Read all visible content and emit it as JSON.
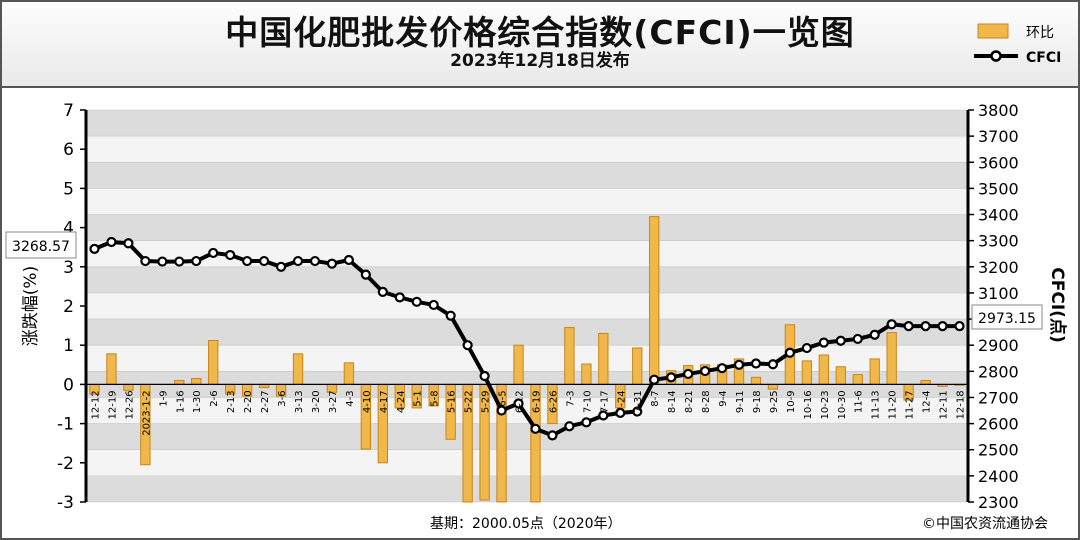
{
  "header": {
    "title": "中国化肥批发价格综合指数(CFCI)一览图",
    "subtitle": "2023年12月18日发布"
  },
  "legend": {
    "bar_label": "环比",
    "line_label": "CFCI",
    "position": "top-right"
  },
  "footer": {
    "base_note": "基期：2000.05点（2020年）",
    "copyright": "©中国农资流通协会"
  },
  "annotations": {
    "start_value": "3268.57",
    "end_value": "2973.15"
  },
  "colors": {
    "bar_fill": "#f0b84a",
    "bar_stroke": "#c8841a",
    "line": "#000000",
    "grid_band": "#dcdcdc"
  },
  "chart_data": {
    "type": "bar+line",
    "grid": true,
    "left_axis": {
      "label": "涨跌幅(%)",
      "ylim": [
        -3,
        7
      ],
      "ticks": [
        "-3",
        "-2",
        "-1",
        "0",
        "1",
        "2",
        "3",
        "4",
        "5",
        "6",
        "7"
      ]
    },
    "right_axis": {
      "label": "CFCI(点)",
      "ylim": [
        2300,
        3800
      ],
      "ticks": [
        "2300",
        "2400",
        "2500",
        "2600",
        "2700",
        "2800",
        "2900",
        "3000",
        "3100",
        "3200",
        "3300",
        "3400",
        "3500",
        "3600",
        "3700",
        "3800"
      ]
    },
    "categories": [
      "12-12",
      "12-19",
      "12-26",
      "2023-1-2",
      "1-9",
      "1-16",
      "1-30",
      "2-6",
      "2-13",
      "2-20",
      "2-27",
      "3-6",
      "3-13",
      "3-20",
      "3-27",
      "4-3",
      "4-10",
      "4-17",
      "4-24",
      "5-1",
      "5-8",
      "5-16",
      "5-22",
      "5-29",
      "6-5",
      "6-12",
      "6-19",
      "6-26",
      "7-3",
      "7-10",
      "7-17",
      "7-24",
      "7-31",
      "8-7",
      "8-14",
      "8-21",
      "8-28",
      "9-4",
      "9-11",
      "9-18",
      "9-25",
      "10-9",
      "10-16",
      "10-23",
      "10-30",
      "11-6",
      "11-13",
      "11-20",
      "11-27",
      "12-4",
      "12-11",
      "12-18"
    ],
    "series": [
      {
        "name": "环比",
        "type": "bar",
        "axis": "left",
        "values": [
          -0.25,
          0.78,
          -0.15,
          -2.05,
          0.0,
          0.1,
          0.15,
          1.12,
          -0.25,
          -0.3,
          -0.08,
          -0.3,
          0.78,
          0.0,
          -0.2,
          0.55,
          -1.65,
          -2.0,
          -0.6,
          -0.6,
          -0.55,
          -1.4,
          -3.0,
          -2.95,
          -3.0,
          1.0,
          -3.0,
          -1.0,
          1.45,
          0.52,
          1.3,
          -0.6,
          0.93,
          4.28,
          0.35,
          0.48,
          0.5,
          0.5,
          0.65,
          0.18,
          -0.12,
          1.52,
          0.6,
          0.75,
          0.45,
          0.25,
          0.65,
          1.32,
          -0.4,
          0.1,
          -0.05,
          -0.02
        ]
      },
      {
        "name": "CFCI",
        "type": "line",
        "axis": "right",
        "values": [
          3268.57,
          3295,
          3290,
          3222,
          3220,
          3220,
          3222,
          3253,
          3245,
          3222,
          3222,
          3200,
          3222,
          3222,
          3212,
          3226,
          3170,
          3104,
          3083,
          3066,
          3054,
          3013,
          2900,
          2782,
          2650,
          2677,
          2580,
          2555,
          2590,
          2605,
          2631,
          2641,
          2646,
          2768,
          2777,
          2790,
          2801,
          2812,
          2825,
          2830,
          2827,
          2871,
          2889,
          2910,
          2917,
          2924,
          2940,
          2980,
          2973,
          2973,
          2973,
          2973.15
        ]
      }
    ]
  }
}
